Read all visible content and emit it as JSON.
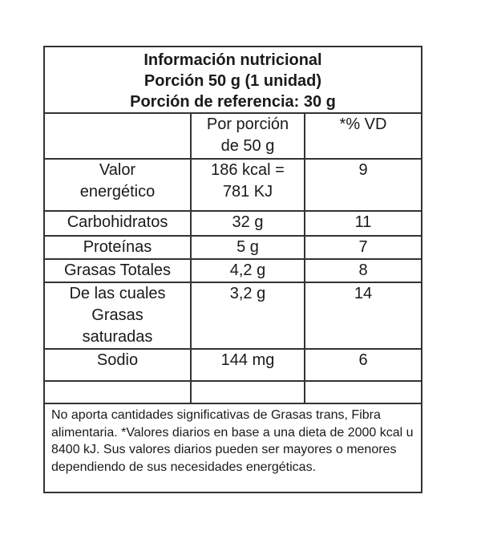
{
  "title_lines": [
    "Información nutricional",
    "Porción 50 g (1 unidad)",
    "Porción de referencia: 30 g"
  ],
  "columns": {
    "blank": "",
    "per_portion": [
      "Por porción",
      "de 50 g"
    ],
    "dv": "*% VD"
  },
  "rows": [
    {
      "name": [
        "Valor",
        "energético"
      ],
      "amount": [
        "186 kcal =",
        "781 KJ"
      ],
      "dv": "9"
    },
    {
      "name": [
        "Carbohidratos"
      ],
      "amount": [
        "32 g"
      ],
      "dv": "11"
    },
    {
      "name": [
        "Proteínas"
      ],
      "amount": [
        "5 g"
      ],
      "dv": "7"
    },
    {
      "name": [
        "Grasas Totales"
      ],
      "amount": [
        "4,2 g"
      ],
      "dv": "8"
    },
    {
      "name": [
        "De las cuales",
        "Grasas",
        "saturadas"
      ],
      "amount": [
        "3,2 g"
      ],
      "dv": "14"
    },
    {
      "name": [
        "Sodio"
      ],
      "amount": [
        "144 mg"
      ],
      "dv": "6"
    }
  ],
  "footnote": "No aporta cantidades significativas de Grasas trans, Fibra alimentaria. *Valores diarios en base a una dieta de 2000 kcal u 8400 kJ. Sus valores diarios pueden ser mayores o menores dependiendo de sus necesidades energéticas."
}
